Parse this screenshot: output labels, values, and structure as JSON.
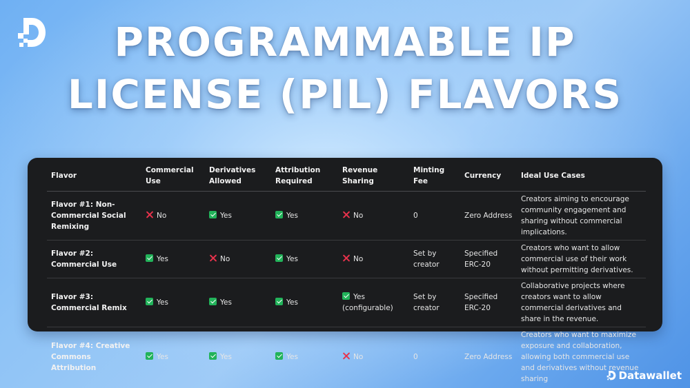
{
  "logo_icon": "datawallet-logo-icon",
  "title": {
    "line1": "PROGRAMMABLE IP",
    "line2": "LICENSE (PIL) FLAVORS"
  },
  "table": {
    "headers": {
      "flavor": "Flavor",
      "commercial": "Commercial Use",
      "derivatives": "Derivatives Allowed",
      "attribution": "Attribution Required",
      "revenue": "Revenue Sharing",
      "fee": "Minting Fee",
      "currency": "Currency",
      "usecases": "Ideal Use Cases"
    },
    "rows": [
      {
        "flavor": "Flavor #1: Non-Commercial Social Remixing",
        "commercial": "No",
        "commercial_icon": "cross-icon",
        "derivatives": "Yes",
        "derivatives_icon": "check-icon",
        "attribution": "Yes",
        "attribution_icon": "check-icon",
        "revenue": "No",
        "revenue_icon": "cross-icon",
        "fee": "0",
        "currency": "Zero Address",
        "usecases": "Creators aiming to encourage community engagement and sharing without commercial implications."
      },
      {
        "flavor": "Flavor #2: Commercial Use",
        "commercial": "Yes",
        "commercial_icon": "check-icon",
        "derivatives": "No",
        "derivatives_icon": "cross-icon",
        "attribution": "Yes",
        "attribution_icon": "check-icon",
        "revenue": "No",
        "revenue_icon": "cross-icon",
        "fee": "Set by creator",
        "currency": "Specified ERC-20",
        "usecases": "Creators who want to allow commercial use of their work without permitting derivatives."
      },
      {
        "flavor": "Flavor #3: Commercial Remix",
        "commercial": "Yes",
        "commercial_icon": "check-icon",
        "derivatives": "Yes",
        "derivatives_icon": "check-icon",
        "attribution": "Yes",
        "attribution_icon": "check-icon",
        "revenue": "Yes",
        "revenue_note": "(configurable)",
        "revenue_icon": "check-icon",
        "fee": "Set by creator",
        "currency": "Specified ERC-20",
        "usecases": "Collaborative projects where creators want to allow commercial derivatives and share in the revenue."
      },
      {
        "flavor": "Flavor #4: Creative Commons Attribution",
        "commercial": "Yes",
        "commercial_icon": "check-icon",
        "derivatives": "Yes",
        "derivatives_icon": "check-icon",
        "attribution": "Yes",
        "attribution_icon": "check-icon",
        "revenue": "No",
        "revenue_icon": "cross-icon",
        "fee": "0",
        "currency": "Zero Address",
        "usecases": "Creators who want to maximize exposure and collaboration, allowing both commercial use and derivatives without revenue sharing"
      }
    ]
  },
  "colors": {
    "yes": "#22b35a",
    "no": "#e8324c",
    "panel": "#1b1c1e"
  },
  "brand": {
    "name": "Datawallet",
    "icon": "datawallet-logo-icon"
  }
}
